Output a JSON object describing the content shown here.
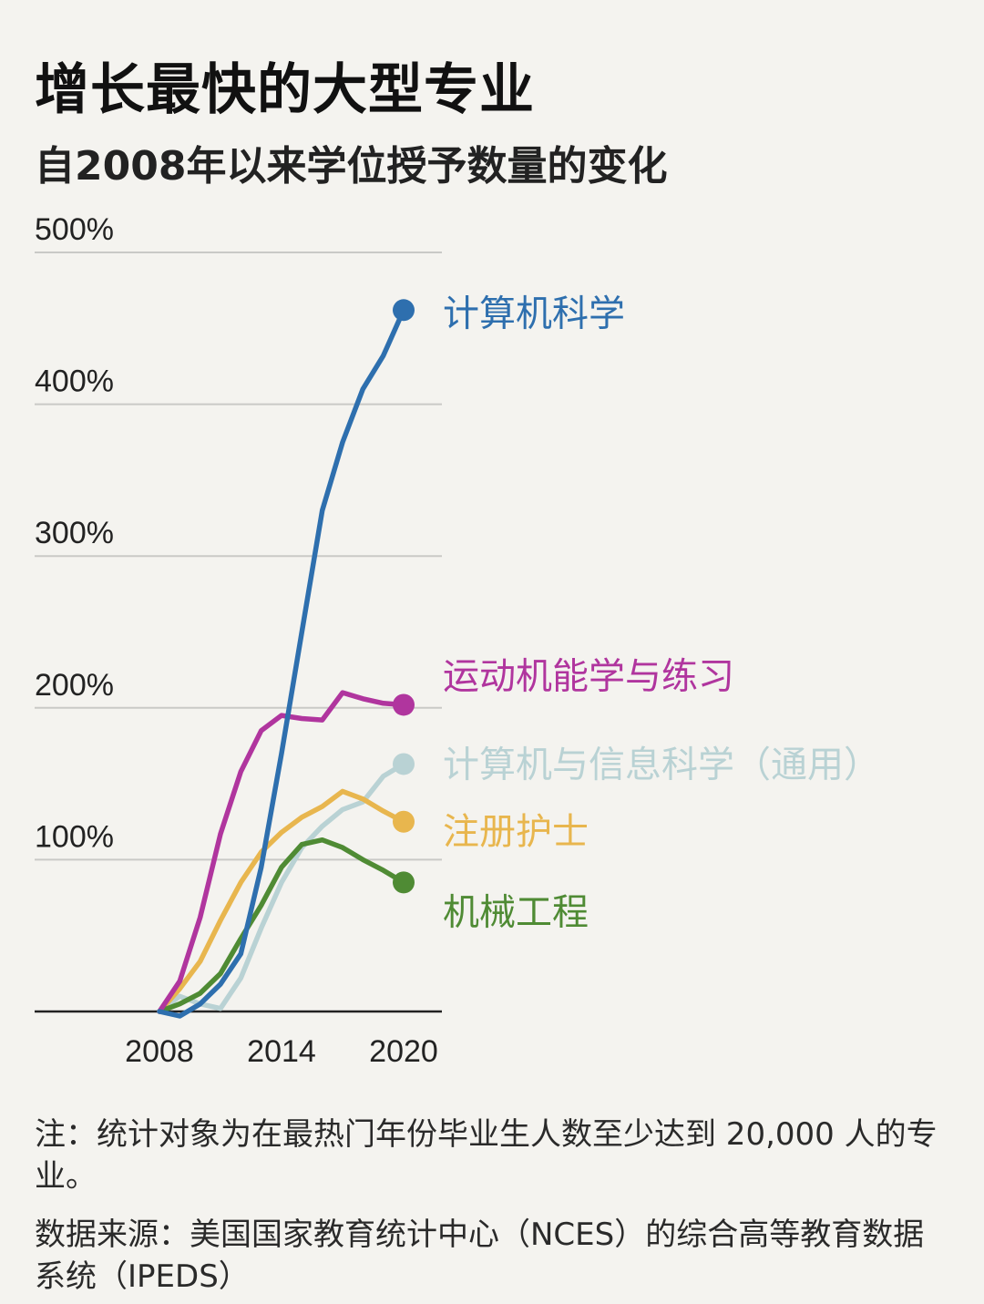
{
  "title": "增长最快的大型专业",
  "subtitle": "自2008年以来学位授予数量的变化",
  "footnote": "注：统计对象为在最热门年份毕业生人数至少达到 20,000 人的专业。",
  "source": "数据来源：美国国家教育统计中心（NCES）的综合高等教育数据系统（IPEDS）",
  "chart_data": {
    "type": "line",
    "title": "增长最快的大型专业",
    "subtitle": "自2008年以来学位授予数量的变化",
    "xlabel": "",
    "ylabel": "",
    "x_ticks": [
      2008,
      2014,
      2020
    ],
    "y_ticks": [
      0,
      100,
      200,
      300,
      400,
      500
    ],
    "y_tick_labels": [
      "",
      "100%",
      "200%",
      "300%",
      "400%",
      "500%"
    ],
    "xlim": [
      2008,
      2020
    ],
    "ylim": [
      0,
      500
    ],
    "grid": true,
    "legend": "direct labels at line ends",
    "x": [
      2008,
      2009,
      2010,
      2011,
      2012,
      2013,
      2014,
      2015,
      2016,
      2017,
      2018,
      2019,
      2020
    ],
    "series": [
      {
        "name": "计算机科学",
        "color": "#2e6fae",
        "end_dot": true,
        "values": [
          0,
          -3,
          5,
          18,
          38,
          95,
          170,
          250,
          330,
          375,
          410,
          432,
          462
        ]
      },
      {
        "name": "运动机能学与练习",
        "color": "#b0359e",
        "end_dot": true,
        "values": [
          0,
          20,
          62,
          117,
          158,
          185,
          195,
          193,
          192,
          210,
          206,
          203,
          202
        ]
      },
      {
        "name": "计算机与信息科学（通用）",
        "color": "#b9d2d4",
        "end_dot": true,
        "values": [
          0,
          10,
          5,
          2,
          22,
          55,
          85,
          108,
          122,
          133,
          138,
          155,
          163
        ]
      },
      {
        "name": "注册护士",
        "color": "#e8b64e",
        "end_dot": true,
        "values": [
          0,
          15,
          33,
          60,
          85,
          105,
          118,
          128,
          135,
          145,
          140,
          132,
          125
        ]
      },
      {
        "name": "机械工程",
        "color": "#4f8b34",
        "end_dot": true,
        "values": [
          0,
          5,
          12,
          25,
          48,
          70,
          95,
          110,
          113,
          108,
          100,
          93,
          85
        ]
      }
    ]
  }
}
